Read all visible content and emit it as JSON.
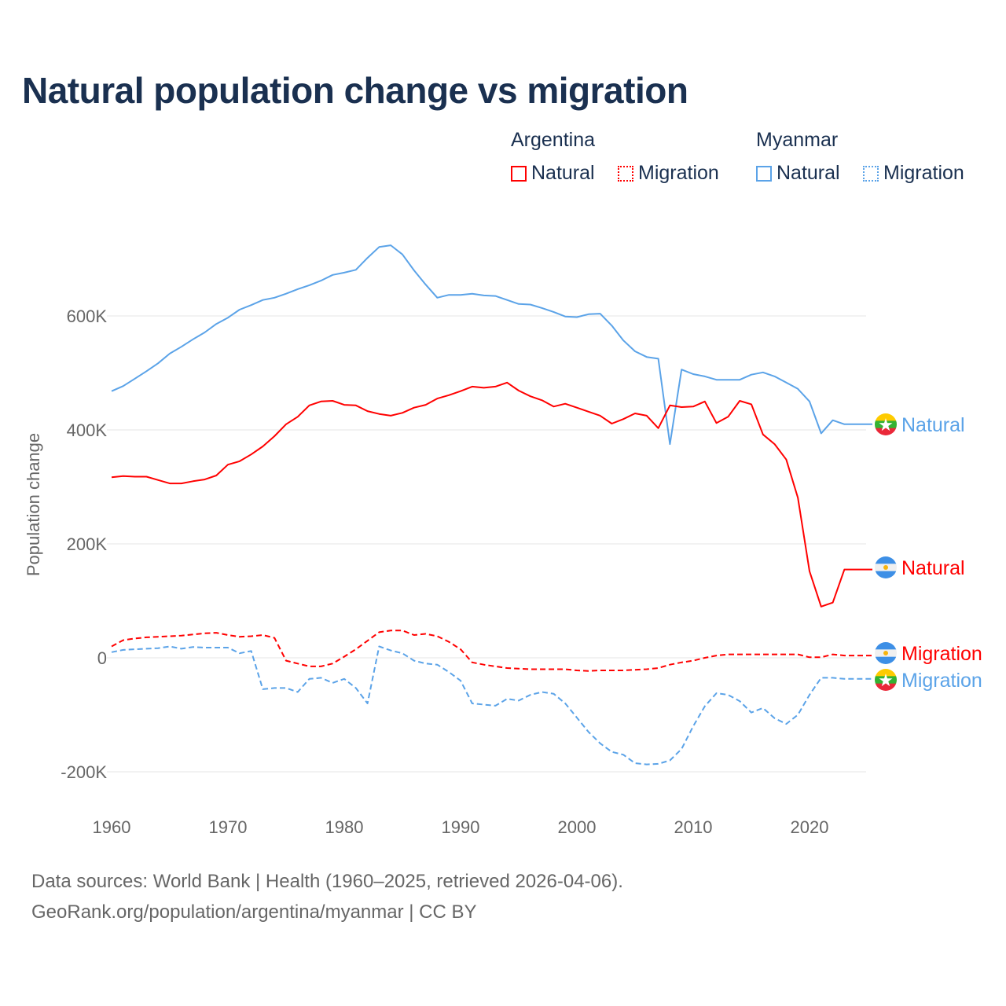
{
  "title": "Natural population change vs migration",
  "legend": {
    "groups": [
      {
        "name": "Argentina",
        "items": [
          "Natural",
          "Migration"
        ],
        "color": "#ff0000"
      },
      {
        "name": "Myanmar",
        "items": [
          "Natural",
          "Migration"
        ],
        "color": "#5ba3e8"
      }
    ]
  },
  "footer": {
    "line1": "Data sources: World Bank | Health (1960–2025, retrieved 2026-04-06).",
    "line2": "GeoRank.org/population/argentina/myanmar | CC BY"
  },
  "chart_data": {
    "type": "line",
    "title": "Natural population change vs migration",
    "xlabel": "",
    "ylabel": "Population change",
    "xlim": [
      1960,
      2025
    ],
    "ylim": [
      -200000,
      720000
    ],
    "x_ticks": [
      1960,
      1970,
      1980,
      1990,
      2000,
      2010,
      2020
    ],
    "x_tick_labels": [
      "1960",
      "1970",
      "1980",
      "1990",
      "2000",
      "2010",
      "2020"
    ],
    "y_ticks": [
      -200000,
      0,
      200000,
      400000,
      600000
    ],
    "y_tick_labels": [
      "-200K",
      "0",
      "200K",
      "400K",
      "600K"
    ],
    "grid": true,
    "x_start": 1960,
    "series": [
      {
        "name": "Myanmar Natural",
        "country": "Myanmar",
        "kind": "Natural",
        "color": "#5ba3e8",
        "dash": false,
        "end_label": "Natural",
        "values": [
          468000,
          477000,
          490000,
          503000,
          517000,
          534000,
          546000,
          559000,
          571000,
          586000,
          597000,
          611000,
          619000,
          628000,
          632000,
          639000,
          647000,
          654000,
          662000,
          672000,
          676000,
          681000,
          702000,
          721000,
          724000,
          708000,
          680000,
          655000,
          632000,
          637000,
          637000,
          639000,
          636000,
          635000,
          628000,
          621000,
          620000,
          614000,
          607000,
          599000,
          598000,
          603000,
          604000,
          583000,
          557000,
          538000,
          528000,
          525000,
          375000,
          506000,
          498000,
          494000,
          488000,
          488000,
          488000,
          497000,
          501000,
          494000,
          483000,
          472000,
          450000,
          394000,
          417000,
          410000
        ]
      },
      {
        "name": "Argentina Natural",
        "country": "Argentina",
        "kind": "Natural",
        "color": "#ff0000",
        "dash": false,
        "end_label": "Natural",
        "values": [
          317000,
          319000,
          318000,
          318000,
          312000,
          306000,
          306000,
          310000,
          313000,
          320000,
          339000,
          345000,
          357000,
          371000,
          389000,
          410000,
          423000,
          443000,
          450000,
          451000,
          444000,
          443000,
          433000,
          428000,
          425000,
          430000,
          439000,
          444000,
          455000,
          461000,
          468000,
          476000,
          474000,
          476000,
          483000,
          469000,
          459000,
          452000,
          441000,
          446000,
          439000,
          432000,
          425000,
          411000,
          419000,
          429000,
          425000,
          403000,
          443000,
          440000,
          441000,
          450000,
          412000,
          423000,
          451000,
          445000,
          392000,
          375000,
          348000,
          281000,
          152000,
          90000,
          97000,
          155000
        ]
      },
      {
        "name": "Argentina Migration",
        "country": "Argentina",
        "kind": "Migration",
        "color": "#ff0000",
        "dash": true,
        "end_label": "Migration",
        "values": [
          20000,
          31000,
          34000,
          36000,
          37000,
          38000,
          39000,
          41000,
          43000,
          44000,
          40000,
          37000,
          38000,
          40000,
          35000,
          -5000,
          -10000,
          -15000,
          -15000,
          -10000,
          2000,
          15000,
          30000,
          45000,
          48000,
          48000,
          40000,
          42000,
          38000,
          28000,
          15000,
          -8000,
          -12000,
          -15000,
          -18000,
          -19000,
          -20000,
          -20000,
          -20000,
          -20000,
          -22000,
          -23000,
          -22000,
          -22000,
          -22000,
          -21000,
          -20000,
          -18000,
          -12000,
          -8000,
          -5000,
          0,
          4000,
          6000,
          6000,
          6000,
          6000,
          6000,
          6000,
          6000,
          1000,
          1000,
          6000,
          4000
        ]
      },
      {
        "name": "Myanmar Migration",
        "country": "Myanmar",
        "kind": "Migration",
        "color": "#5ba3e8",
        "dash": true,
        "end_label": "Migration",
        "values": [
          10000,
          14000,
          15000,
          16000,
          17000,
          20000,
          16000,
          19000,
          18000,
          18000,
          18000,
          8000,
          12000,
          -55000,
          -53000,
          -53000,
          -60000,
          -37000,
          -35000,
          -44000,
          -37000,
          -53000,
          -80000,
          20000,
          13000,
          8000,
          -5000,
          -10000,
          -12000,
          -25000,
          -40000,
          -80000,
          -82000,
          -84000,
          -72000,
          -75000,
          -65000,
          -60000,
          -63000,
          -80000,
          -105000,
          -130000,
          -150000,
          -165000,
          -170000,
          -185000,
          -187000,
          -186000,
          -180000,
          -160000,
          -120000,
          -85000,
          -62000,
          -65000,
          -76000,
          -96000,
          -88000,
          -106000,
          -116000,
          -100000,
          -65000,
          -35000,
          -35000,
          -37000
        ]
      }
    ]
  }
}
